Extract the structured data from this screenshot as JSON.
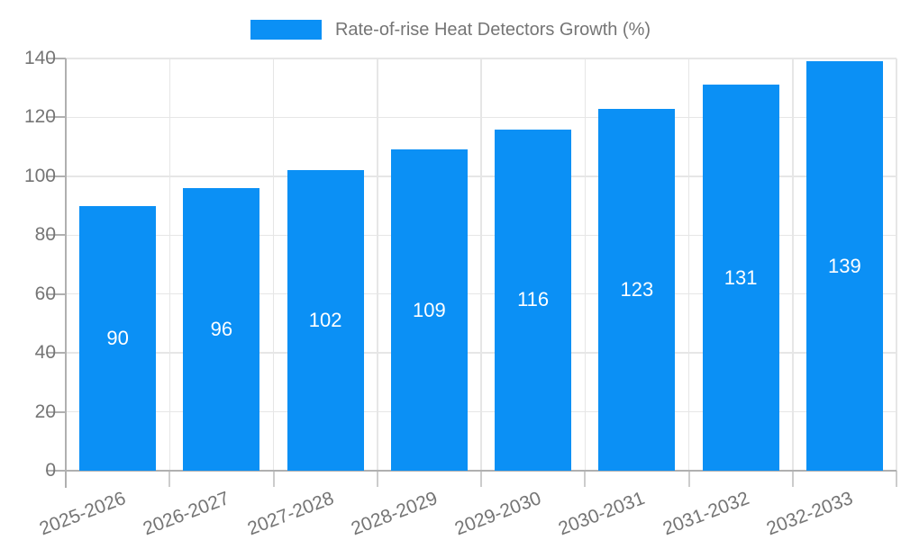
{
  "chart_data": {
    "type": "bar",
    "title": "Rate-of-rise Heat Detectors Growth (%)",
    "categories": [
      "2025-2026",
      "2026-2027",
      "2027-2028",
      "2028-2029",
      "2029-2030",
      "2030-2031",
      "2031-2032",
      "2032-2033"
    ],
    "values": [
      90,
      96,
      102,
      109,
      116,
      123,
      131,
      139
    ],
    "xlabel": "",
    "ylabel": "",
    "ylim": [
      0,
      140
    ],
    "yticks": [
      0,
      20,
      40,
      60,
      80,
      100,
      120,
      140
    ],
    "grid": true,
    "legend_position": "top",
    "legend_entries": [
      {
        "label": "Rate-of-rise Heat Detectors Growth (%)",
        "color": "#0b90f5"
      }
    ],
    "bar_color": "#0b90f5",
    "value_label_color": "#ffffff",
    "axis_text_color": "#757575",
    "axis_line_color": "#b0b0b0",
    "grid_color": "#e6e6e6",
    "background_color": "#ffffff"
  }
}
